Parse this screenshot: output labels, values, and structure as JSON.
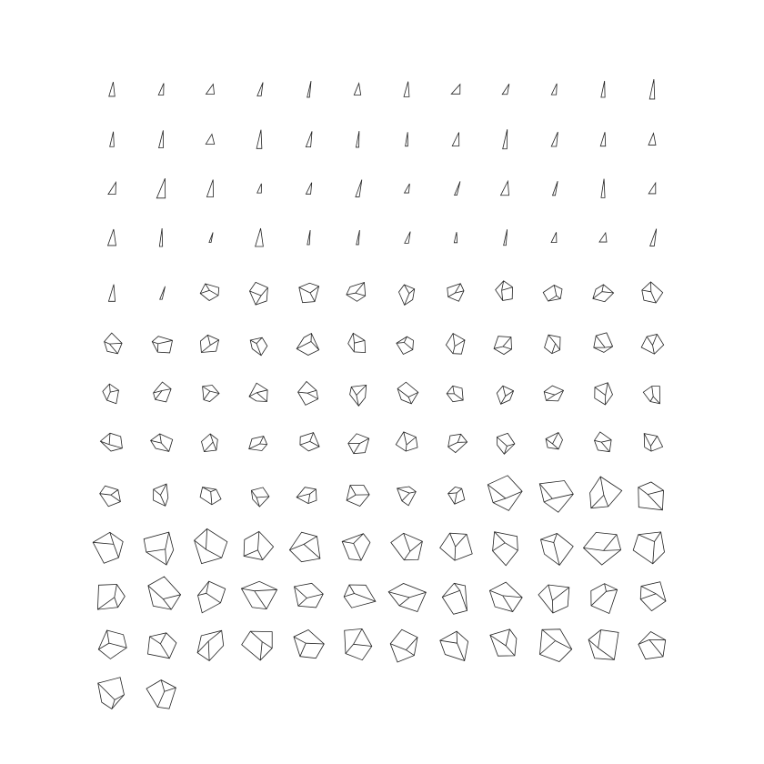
{
  "figure": {
    "type": "small-multiples",
    "columns": 12,
    "groups": [
      {
        "name": "triangle",
        "count": 50
      },
      {
        "name": "pentagon",
        "count": 54
      },
      {
        "name": "large-pentagon",
        "count": 42
      }
    ],
    "stroke_color": "#222222",
    "background": "#ffffff"
  }
}
